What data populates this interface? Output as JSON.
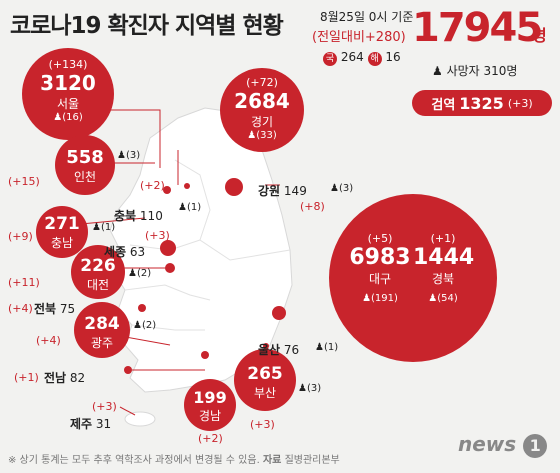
{
  "header": {
    "title": "코로나19 확진자 지역별 현황",
    "date": "8월25일 0시 기준",
    "change": "(전일대비+280)",
    "total": "17945",
    "total_unit": "명",
    "domestic_label": "국",
    "domestic_value": "264",
    "overseas_label": "해",
    "overseas_value": "16",
    "deaths": "사망자 310명",
    "tests_label": "검역",
    "tests_value": "1325",
    "tests_change": "(+3)"
  },
  "regions": {
    "seoul": {
      "name": "서울",
      "count": "3120",
      "change": "(+134)",
      "deaths": "(16)"
    },
    "gyeonggi": {
      "name": "경기",
      "count": "2684",
      "change": "(+72)",
      "deaths": "(33)"
    },
    "incheon": {
      "name": "인천",
      "count": "558",
      "change": "(+15)",
      "deaths": "(3)"
    },
    "chungnam": {
      "name": "충남",
      "count": "271",
      "change": "(+9)",
      "deaths": "(1)"
    },
    "daejeon": {
      "name": "대전",
      "count": "226",
      "change": "(+11)",
      "deaths": "(2)"
    },
    "gwangju": {
      "name": "광주",
      "count": "284",
      "change": "(+4)",
      "deaths": "(2)"
    },
    "chungbuk": {
      "name": "충북",
      "count": "110",
      "change": "(+2)",
      "deaths": "(1)"
    },
    "sejong": {
      "name": "세종",
      "count": "63",
      "change": "(+3)"
    },
    "gangwon": {
      "name": "강원",
      "count": "149",
      "change": "(+8)",
      "deaths": "(3)"
    },
    "jeonbuk": {
      "name": "전북",
      "count": "75",
      "change": "(+4)"
    },
    "jeonnam": {
      "name": "전남",
      "count": "82",
      "change": "(+1)"
    },
    "jeju": {
      "name": "제주",
      "count": "31",
      "change": "(+3)"
    },
    "daegu": {
      "name": "대구",
      "count": "6983",
      "change": "(+5)",
      "deaths": "(191)"
    },
    "gyeongbuk": {
      "name": "경북",
      "count": "1444",
      "change": "(+1)",
      "deaths": "(54)"
    },
    "ulsan": {
      "name": "울산",
      "count": "76",
      "deaths": "(1)"
    },
    "gyeongnam": {
      "name": "경남",
      "count": "199",
      "change": "(+2)"
    },
    "busan": {
      "name": "부산",
      "count": "265",
      "change": "(+3)",
      "deaths": "(3)"
    }
  },
  "footer": {
    "note": "※ 상기 통계는 모두 추후 역학조사 과정에서 변경될 수 있음.",
    "source_label": "자료",
    "source": "질병관리본부",
    "logo": "news",
    "logo_num": "1"
  },
  "colors": {
    "accent": "#c8242c",
    "map": "#ffffff",
    "background": "#f2f2f0"
  }
}
